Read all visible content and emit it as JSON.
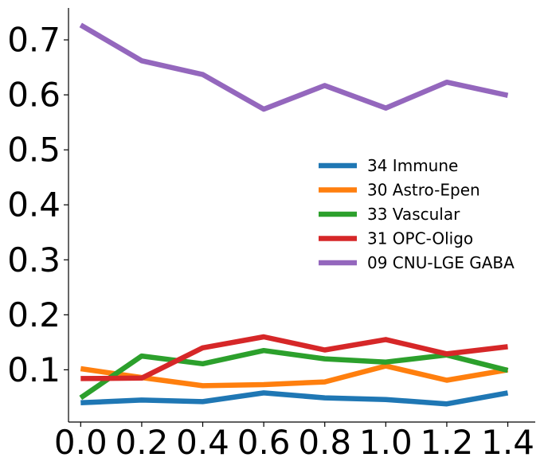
{
  "chart_data": {
    "type": "line",
    "title": "",
    "xlabel": "",
    "ylabel": "",
    "x": [
      0.0,
      0.2,
      0.4,
      0.6,
      0.8,
      1.0,
      1.2,
      1.4
    ],
    "x_tick_labels": [
      "0.0",
      "0.2",
      "0.4",
      "0.6",
      "0.8",
      "1.0",
      "1.2",
      "1.4"
    ],
    "y_ticks": [
      0.1,
      0.2,
      0.3,
      0.4,
      0.5,
      0.6,
      0.7
    ],
    "y_tick_labels": [
      "0.1",
      "0.2",
      "0.3",
      "0.4",
      "0.5",
      "0.6",
      "0.7"
    ],
    "xlim": [
      -0.04,
      1.49
    ],
    "ylim": [
      0.005,
      0.758
    ],
    "grid": false,
    "legend_position": "center-right",
    "series": [
      {
        "name": "34 Immune",
        "color": "#1f77b4",
        "values": [
          0.04,
          0.045,
          0.042,
          0.058,
          0.049,
          0.046,
          0.038,
          0.058
        ]
      },
      {
        "name": "30 Astro-Epen",
        "color": "#ff7f0e",
        "values": [
          0.102,
          0.086,
          0.071,
          0.073,
          0.078,
          0.107,
          0.081,
          0.1
        ]
      },
      {
        "name": "33 Vascular",
        "color": "#2ca02c",
        "values": [
          0.049,
          0.125,
          0.111,
          0.135,
          0.12,
          0.114,
          0.127,
          0.099
        ]
      },
      {
        "name": "31 OPC-Oligo",
        "color": "#d62728",
        "values": [
          0.084,
          0.085,
          0.14,
          0.16,
          0.136,
          0.155,
          0.129,
          0.142
        ]
      },
      {
        "name": "09 CNU-LGE GABA",
        "color": "#9467bd",
        "values": [
          0.727,
          0.662,
          0.637,
          0.574,
          0.617,
          0.576,
          0.623,
          0.599
        ]
      }
    ]
  }
}
